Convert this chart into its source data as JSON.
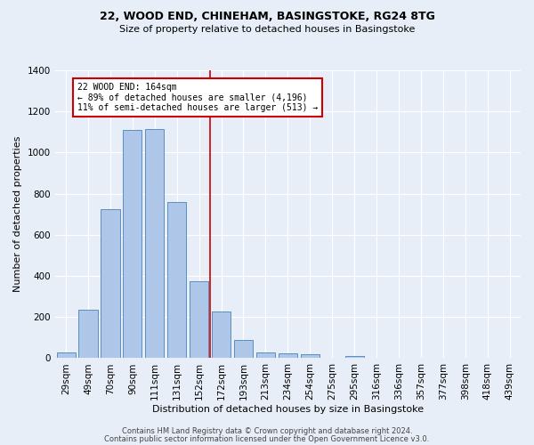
{
  "title1": "22, WOOD END, CHINEHAM, BASINGSTOKE, RG24 8TG",
  "title2": "Size of property relative to detached houses in Basingstoke",
  "xlabel": "Distribution of detached houses by size in Basingstoke",
  "ylabel": "Number of detached properties",
  "categories": [
    "29sqm",
    "49sqm",
    "70sqm",
    "90sqm",
    "111sqm",
    "131sqm",
    "152sqm",
    "172sqm",
    "193sqm",
    "213sqm",
    "234sqm",
    "254sqm",
    "275sqm",
    "295sqm",
    "316sqm",
    "336sqm",
    "357sqm",
    "377sqm",
    "398sqm",
    "418sqm",
    "439sqm"
  ],
  "values": [
    30,
    235,
    725,
    1110,
    1115,
    760,
    375,
    225,
    90,
    30,
    25,
    20,
    0,
    12,
    0,
    0,
    0,
    0,
    0,
    0,
    0
  ],
  "bar_color": "#aec6e8",
  "bar_edge_color": "#5a8fc2",
  "vline_color": "#cc0000",
  "annotation_text": "22 WOOD END: 164sqm\n← 89% of detached houses are smaller (4,196)\n11% of semi-detached houses are larger (513) →",
  "annotation_box_color": "#ffffff",
  "annotation_box_edge_color": "#cc0000",
  "ylim": [
    0,
    1400
  ],
  "yticks": [
    0,
    200,
    400,
    600,
    800,
    1000,
    1200,
    1400
  ],
  "background_color": "#e8eef8",
  "footer1": "Contains HM Land Registry data © Crown copyright and database right 2024.",
  "footer2": "Contains public sector information licensed under the Open Government Licence v3.0."
}
